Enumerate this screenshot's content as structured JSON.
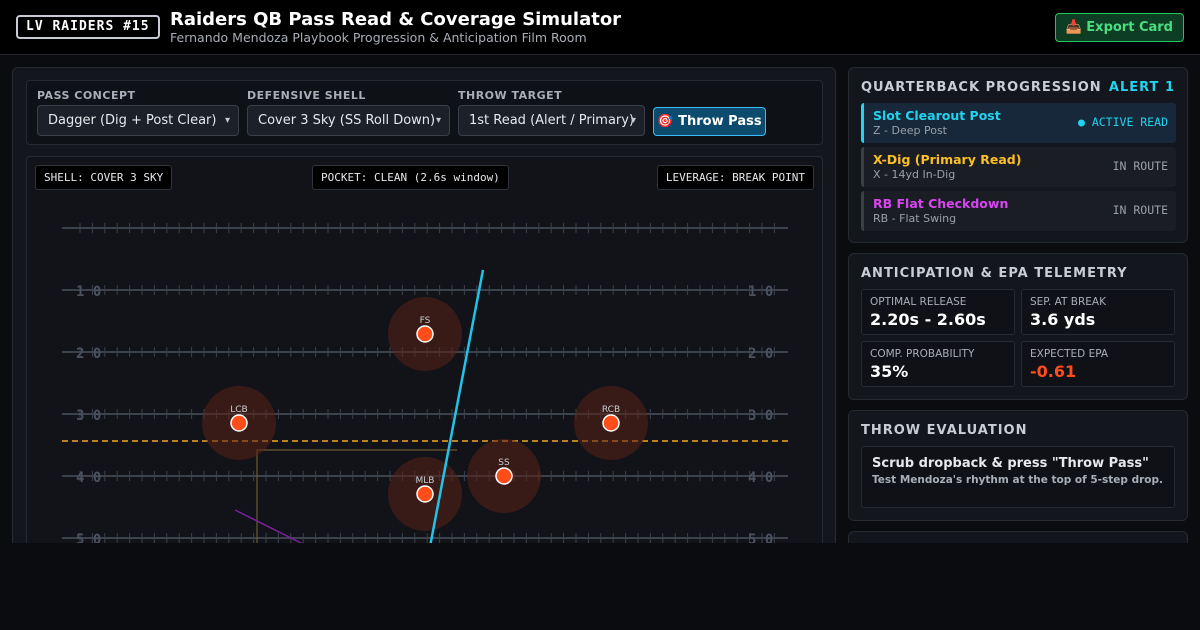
{
  "header": {
    "badge": "LV RAIDERS #15",
    "title": "Raiders QB Pass Read & Coverage Simulator",
    "subtitle": "Fernando Mendoza Playbook Progression & Anticipation Film Room",
    "export_label": "📥 Export Card"
  },
  "controls": {
    "pass_concept": {
      "label": "Pass Concept",
      "value": "Dagger (Dig + Post Clear)"
    },
    "defensive_shell": {
      "label": "Defensive Shell",
      "value": "Cover 3 Sky (SS Roll Down)"
    },
    "throw_target": {
      "label": "Throw Target",
      "value": "1st Read (Alert / Primary)"
    },
    "throw_button": "🎯 Throw Pass"
  },
  "field": {
    "chips": {
      "shell": "SHELL: COVER 3 SKY",
      "pocket": "POCKET: CLEAN (2.6s window)",
      "leverage": "LEVERAGE: BREAK POINT"
    },
    "yard_numbers": [
      "1 0",
      "2 0",
      "3 0",
      "4 0",
      "5 0"
    ],
    "defenders": [
      {
        "label": "FS"
      },
      {
        "label": "LCB"
      },
      {
        "label": "RCB"
      },
      {
        "label": "MLB"
      },
      {
        "label": "SS"
      }
    ],
    "colors": {
      "defender": "#ff4d1a",
      "zone": "#5a2318",
      "throw_line": "#22c3e6",
      "scrimmage_line": "#f5a524",
      "field_lines": "#3c424c",
      "yard_numbers": "#4a5160"
    }
  },
  "progression": {
    "title": "QUARTERBACK PROGRESSION",
    "alert": "ALERT 1",
    "reads": [
      {
        "name": "Slot Clearout Post",
        "sub": "Z - Deep Post",
        "status": "● ACTIVE READ",
        "color": "#22d3ee"
      },
      {
        "name": "X-Dig (Primary Read)",
        "sub": "X - 14yd In-Dig",
        "status": "IN ROUTE",
        "color": "#fbbf24"
      },
      {
        "name": "RB Flat Checkdown",
        "sub": "RB - Flat Swing",
        "status": "IN ROUTE",
        "color": "#d946ef"
      }
    ]
  },
  "telemetry": {
    "title": "ANTICIPATION & EPA TELEMETRY",
    "optimal_release": {
      "label": "Optimal Release",
      "value": "2.20s - 2.60s"
    },
    "separation": {
      "label": "Sep. at Break",
      "value": "3.6 yds"
    },
    "comp_prob": {
      "label": "Comp. Probability",
      "value": "35%"
    },
    "expected_epa": {
      "label": "Expected EPA",
      "value": "-0.61",
      "color": "#ff4d1a"
    }
  },
  "evaluation": {
    "title": "THROW EVALUATION",
    "headline": "Scrub dropback & press \"Throw Pass\"",
    "detail": "Test Mendoza's rhythm at the top of 5-step drop."
  }
}
